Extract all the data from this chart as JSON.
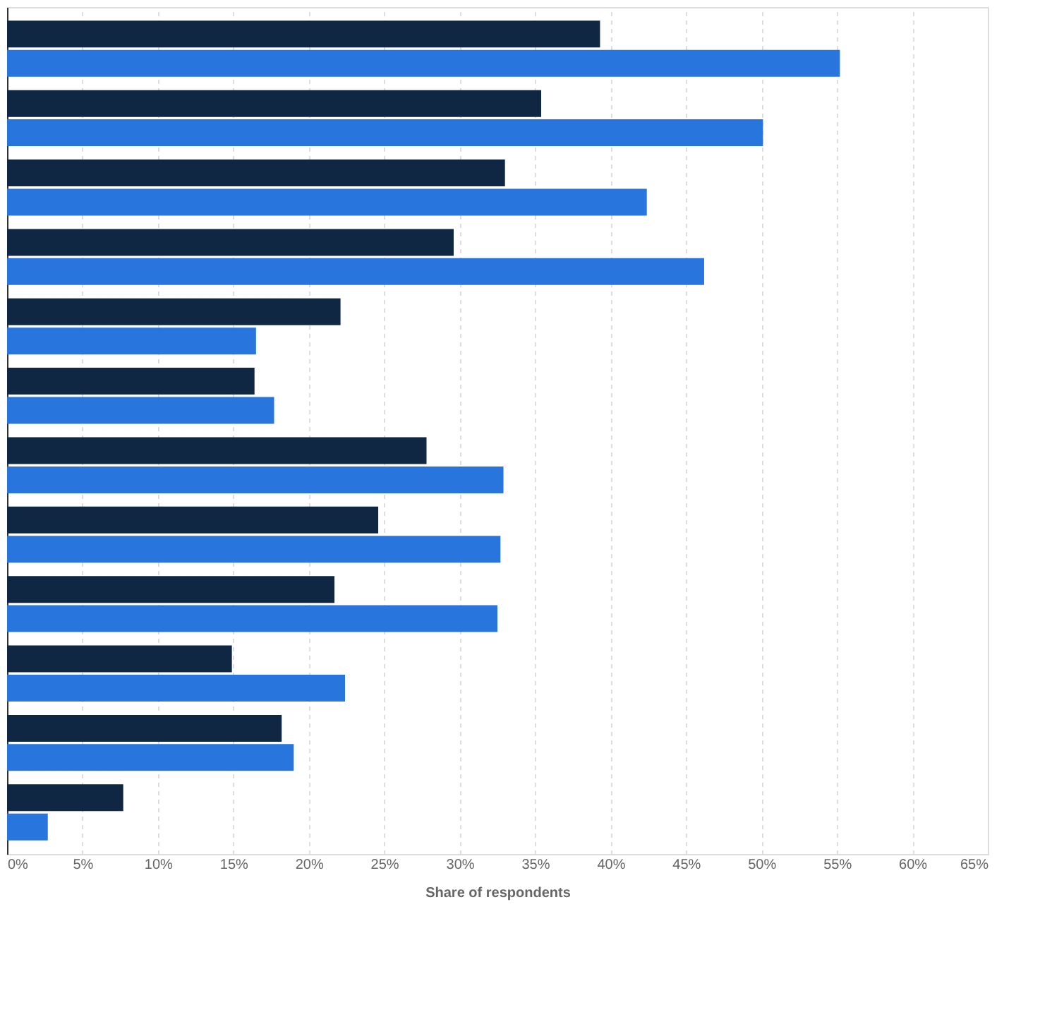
{
  "chart_data": {
    "type": "bar",
    "orientation": "horizontal",
    "xlabel": "Share of respondents",
    "categories": [
      null,
      null,
      null,
      null,
      null,
      null,
      null,
      null,
      null,
      null,
      null,
      null
    ],
    "series": [
      {
        "color": "#0f2742",
        "values": [
          39.3,
          35.4,
          33.0,
          29.6,
          22.1,
          16.4,
          27.8,
          24.6,
          21.7,
          14.9,
          18.2,
          7.7
        ]
      },
      {
        "color": "#2876dd",
        "values": [
          55.2,
          50.1,
          42.4,
          46.2,
          16.5,
          17.7,
          32.9,
          32.7,
          32.5,
          22.4,
          19.0,
          2.7
        ]
      }
    ],
    "xlim": [
      0,
      65
    ],
    "xticks": [
      {
        "value": 0,
        "label": "0%"
      },
      {
        "value": 5,
        "label": "5%"
      },
      {
        "value": 10,
        "label": "10%"
      },
      {
        "value": 15,
        "label": "15%"
      },
      {
        "value": 20,
        "label": "20%"
      },
      {
        "value": 25,
        "label": "25%"
      },
      {
        "value": 30,
        "label": "30%"
      },
      {
        "value": 35,
        "label": "35%"
      },
      {
        "value": 40,
        "label": "40%"
      },
      {
        "value": 45,
        "label": "45%"
      },
      {
        "value": 50,
        "label": "50%"
      },
      {
        "value": 55,
        "label": "55%"
      },
      {
        "value": 60,
        "label": "60%"
      },
      {
        "value": 65,
        "label": "65%"
      }
    ],
    "grid": "x",
    "tick_labels": "x",
    "legend": false
  }
}
